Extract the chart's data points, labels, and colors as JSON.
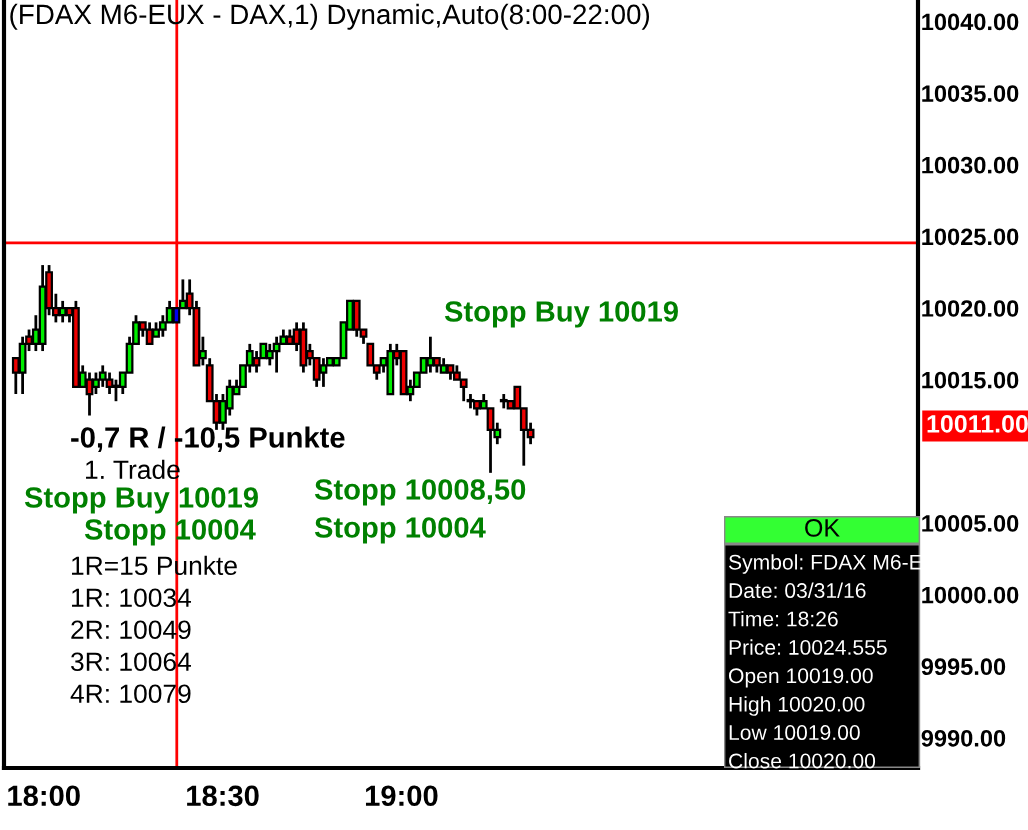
{
  "chart_data": {
    "type": "candlestick",
    "title": "(FDAX M6-EUX - DAX,1) Dynamic,Auto(8:00-22:00)",
    "x": [
      17.922,
      17.941,
      17.959,
      17.978,
      17.997,
      18.015,
      18.034,
      18.053,
      18.072,
      18.09,
      18.109,
      18.128,
      18.146,
      18.165,
      18.184,
      18.202,
      18.221,
      18.24,
      18.258,
      18.277,
      18.296,
      18.314,
      18.333,
      18.352,
      18.371,
      18.389,
      18.408,
      18.427,
      18.445,
      18.464,
      18.483,
      18.501,
      18.52,
      18.539,
      18.557,
      18.576,
      18.595,
      18.614,
      18.632,
      18.651,
      18.67,
      18.688,
      18.707,
      18.726,
      18.744,
      18.763,
      18.782,
      18.8,
      18.819,
      18.838,
      18.856,
      18.875,
      18.894,
      18.913,
      18.931,
      18.95,
      18.969,
      18.987,
      19.006,
      19.025,
      19.043,
      19.062,
      19.081,
      19.099,
      19.118,
      19.137,
      19.155,
      19.174,
      19.193,
      19.211,
      19.23,
      19.249,
      19.268,
      19.286,
      19.305,
      19.324,
      19.342,
      19.361
    ],
    "ohlc": [
      [
        10016.5,
        10016.5,
        10014.0,
        10015.5
      ],
      [
        10015.5,
        10018.0,
        10014.0,
        10017.5
      ],
      [
        10018.0,
        10018.5,
        10017.0,
        10017.5
      ],
      [
        10017.5,
        10019.5,
        10017.0,
        10018.5
      ],
      [
        10017.5,
        10023.0,
        10017.0,
        10021.5
      ],
      [
        10022.5,
        10023.0,
        10019.5,
        10020.0
      ],
      [
        10020.0,
        10021.0,
        10019.0,
        10019.5
      ],
      [
        10019.5,
        10020.5,
        10019.0,
        10020.0
      ],
      [
        10020.0,
        10020.0,
        10019.0,
        10019.5
      ],
      [
        10020.0,
        10020.5,
        10014.5,
        10014.5
      ],
      [
        10014.5,
        10016.0,
        10014.5,
        10015.5
      ],
      [
        10015.0,
        10015.5,
        10012.5,
        10014.0
      ],
      [
        10014.5,
        10015.5,
        10014.0,
        10015.0
      ],
      [
        10015.0,
        10016.0,
        10014.5,
        10015.5
      ],
      [
        10015.0,
        10015.5,
        10014.0,
        10014.5
      ],
      [
        10014.5,
        10015.0,
        10013.5,
        10014.5
      ],
      [
        10014.5,
        10015.5,
        10014.0,
        10015.5
      ],
      [
        10015.5,
        10018.0,
        10015.5,
        10017.5
      ],
      [
        10017.5,
        10019.5,
        10017.5,
        10019.0
      ],
      [
        10019.0,
        10019.0,
        10018.0,
        10018.5
      ],
      [
        10018.5,
        10019.0,
        10017.5,
        10017.5
      ],
      [
        10018.0,
        10019.0,
        10018.0,
        10018.5
      ],
      [
        10018.5,
        10019.5,
        10018.0,
        10019.0
      ],
      [
        10019.0,
        10020.5,
        10019.0,
        10020.0
      ],
      [
        10019.0,
        10020.0,
        10019.0,
        10020.0
      ],
      [
        10020.0,
        10022.0,
        10020.0,
        10020.5
      ],
      [
        10021.0,
        10022.0,
        10019.5,
        10020.0
      ],
      [
        10020.0,
        10020.5,
        10016.0,
        10016.0
      ],
      [
        10016.5,
        10018.0,
        10016.0,
        10017.0
      ],
      [
        10016.0,
        10016.5,
        10013.5,
        10013.5
      ],
      [
        10013.5,
        10014.0,
        10011.5,
        10012.0
      ],
      [
        10012.0,
        10014.0,
        10011.5,
        10013.5
      ],
      [
        10013.0,
        10015.0,
        10012.5,
        10014.5
      ],
      [
        10014.0,
        10015.0,
        10014.0,
        10014.5
      ],
      [
        10014.5,
        10016.0,
        10014.5,
        10016.0
      ],
      [
        10016.0,
        10017.5,
        10015.5,
        10017.0
      ],
      [
        10016.5,
        10017.0,
        10015.5,
        10016.0
      ],
      [
        10016.5,
        10017.5,
        10016.5,
        10017.5
      ],
      [
        10016.5,
        10017.5,
        10016.0,
        10017.0
      ],
      [
        10017.0,
        10018.0,
        10015.5,
        10017.5
      ],
      [
        10017.5,
        10018.5,
        10017.5,
        10018.0
      ],
      [
        10018.0,
        10018.5,
        10017.5,
        10017.5
      ],
      [
        10018.5,
        10019.0,
        10017.0,
        10017.5
      ],
      [
        10018.5,
        10019.0,
        10015.5,
        10016.0
      ],
      [
        10017.0,
        10017.5,
        10016.0,
        10016.5
      ],
      [
        10016.5,
        10016.5,
        10014.5,
        10015.0
      ],
      [
        10015.5,
        10016.5,
        10014.5,
        10016.0
      ],
      [
        10016.0,
        10016.5,
        10016.0,
        10016.5
      ],
      [
        10016.0,
        10016.5,
        10016.0,
        10016.5
      ],
      [
        10016.5,
        10019.0,
        10016.5,
        10019.0
      ],
      [
        10018.5,
        10020.5,
        10018.5,
        10020.5
      ],
      [
        10020.5,
        10020.5,
        10018.0,
        10018.5
      ],
      [
        10018.5,
        10018.5,
        10017.5,
        10018.0
      ],
      [
        10017.5,
        10017.5,
        10016.0,
        10016.0
      ],
      [
        10016.0,
        10016.0,
        10015.0,
        10015.5
      ],
      [
        10016.0,
        10016.5,
        10015.5,
        10016.5
      ],
      [
        10014.0,
        10017.5,
        10014.0,
        10017.0
      ],
      [
        10017.0,
        10017.5,
        10016.0,
        10016.5
      ],
      [
        10017.0,
        10017.0,
        10014.0,
        10014.0
      ],
      [
        10014.0,
        10015.0,
        10013.5,
        10014.5
      ],
      [
        10014.5,
        10015.5,
        10014.5,
        10015.5
      ],
      [
        10015.5,
        10016.5,
        10015.5,
        10016.5
      ],
      [
        10016.0,
        10018.0,
        10015.5,
        10016.5
      ],
      [
        10016.5,
        10016.5,
        10015.5,
        10016.0
      ],
      [
        10015.5,
        10016.5,
        10015.5,
        10016.0
      ],
      [
        10016.0,
        10016.0,
        10015.0,
        10015.5
      ],
      [
        10015.5,
        10016.0,
        10015.0,
        10015.0
      ],
      [
        10015.0,
        10015.0,
        10013.5,
        10014.5
      ],
      [
        10013.5,
        10014.0,
        10013.0,
        10013.5
      ],
      [
        10013.5,
        10013.5,
        10012.5,
        10013.0
      ],
      [
        10013.0,
        10014.0,
        10013.0,
        10013.5
      ],
      [
        10013.0,
        10013.0,
        10008.5,
        10011.5
      ],
      [
        10011.0,
        10012.0,
        10010.5,
        10011.5
      ],
      [
        10013.5,
        10014.0,
        10013.0,
        10013.5
      ],
      [
        10013.5,
        10013.5,
        10013.0,
        10013.0
      ],
      [
        10014.5,
        10014.5,
        10013.0,
        10013.0
      ],
      [
        10013.0,
        10013.0,
        10009.0,
        10011.5
      ],
      [
        10011.5,
        10012.0,
        10010.5,
        10011.0
      ]
    ],
    "colors": [
      "#ee0000",
      "#00ee00",
      "#ee0000",
      "#00ee00",
      "#00ee00",
      "#ee0000",
      "#ee0000",
      "#00ee00",
      "#ee0000",
      "#ee0000",
      "#00ee00",
      "#ee0000",
      "#00ee00",
      "#00ee00",
      "#ee0000",
      "#00ee00",
      "#00ee00",
      "#00ee00",
      "#00ee00",
      "#ee0000",
      "#ee0000",
      "#00ee00",
      "#00ee00",
      "#00ee00",
      "#0000ee",
      "#00ee00",
      "#ee0000",
      "#ee0000",
      "#00ee00",
      "#ee0000",
      "#ee0000",
      "#00ee00",
      "#00ee00",
      "#00ee00",
      "#00ee00",
      "#00ee00",
      "#ee0000",
      "#00ee00",
      "#00ee00",
      "#00ee00",
      "#00ee00",
      "#ee0000",
      "#ee0000",
      "#ee0000",
      "#ee0000",
      "#ee0000",
      "#00ee00",
      "#00ee00",
      "#00ee00",
      "#00ee00",
      "#00ee00",
      "#ee0000",
      "#ee0000",
      "#ee0000",
      "#ee0000",
      "#00ee00",
      "#00ee00",
      "#ee0000",
      "#ee0000",
      "#00ee00",
      "#00ee00",
      "#00ee00",
      "#00ee00",
      "#ee0000",
      "#00ee00",
      "#ee0000",
      "#ee0000",
      "#ee0000",
      "#00ee00",
      "#ee0000",
      "#00ee00",
      "#ee0000",
      "#00ee00",
      "#00ee00",
      "#ee0000",
      "#ee0000",
      "#ee0000",
      "#ee0000"
    ],
    "xlim": [
      17.889,
      20.444
    ],
    "xticks": [
      {
        "value": 18.0,
        "label": "18:00"
      },
      {
        "value": 18.5,
        "label": "18:30"
      },
      {
        "value": 19.0,
        "label": "19:00"
      }
    ],
    "ylim": [
      9987.9,
      10041.5
    ],
    "yticks": [
      {
        "value": 9990,
        "label": "9990.00"
      },
      {
        "value": 9995,
        "label": "9995.00"
      },
      {
        "value": 10000,
        "label": "10000.00"
      },
      {
        "value": 10005,
        "label": "10005.00"
      },
      {
        "value": 10015,
        "label": "10015.00"
      },
      {
        "value": 10020,
        "label": "10020.00"
      },
      {
        "value": 10025,
        "label": "10025.00"
      },
      {
        "value": 10030,
        "label": "10030.00"
      },
      {
        "value": 10035,
        "label": "10035.00"
      },
      {
        "value": 10040,
        "label": "10040.00"
      }
    ],
    "ref_lines": [
      {
        "axis": "x",
        "value": 18.372,
        "color": "#ff0000"
      },
      {
        "axis": "y",
        "value": 10024.555,
        "color": "#ff0000"
      }
    ],
    "annotations": [
      "Stopp Buy 10019",
      "-0,7 R / -10,5 Punkte",
      "1. Trade",
      "Stopp Buy 10019",
      "Stopp 10004",
      "Stopp 10008,50",
      "Stopp 10004",
      "1R=15 Punkte",
      "1R: 10034",
      "2R: 10049",
      "3R: 10064",
      "4R: 10079",
      "10011.00",
      "OK",
      "Symbol: FDAX M6-E",
      "Date: 03/31/16",
      "Time: 18:26",
      "Price: 10024.555",
      "Open 10019.00",
      "High 10020.00",
      "Low 10019.00",
      "Close 10020.00"
    ],
    "grid": false
  }
}
